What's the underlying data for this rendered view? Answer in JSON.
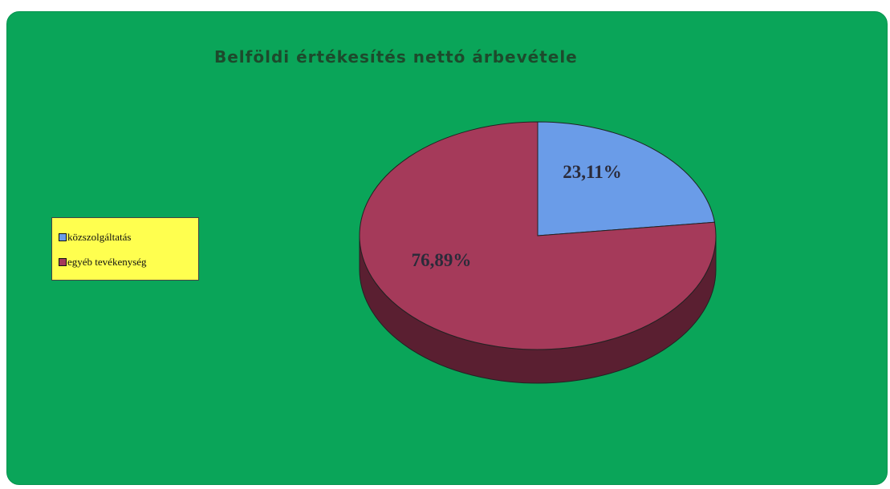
{
  "chart_data": {
    "type": "pie",
    "title": "Belföldi értékesítés nettó árbevétele",
    "slices": [
      {
        "label": "közszolgáltatás",
        "value": 23.11,
        "value_label": "23,11%",
        "color": "#6a9ce8",
        "side_color": "#3f6aa8"
      },
      {
        "label": "egyéb tevékenység",
        "value": 76.89,
        "value_label": "76,89%",
        "color": "#a53a5a",
        "side_color": "#5a1f31"
      }
    ],
    "legend_position": "left",
    "background_color": "#0aa559",
    "legend_background": "#ffff4f",
    "three_d": true
  }
}
